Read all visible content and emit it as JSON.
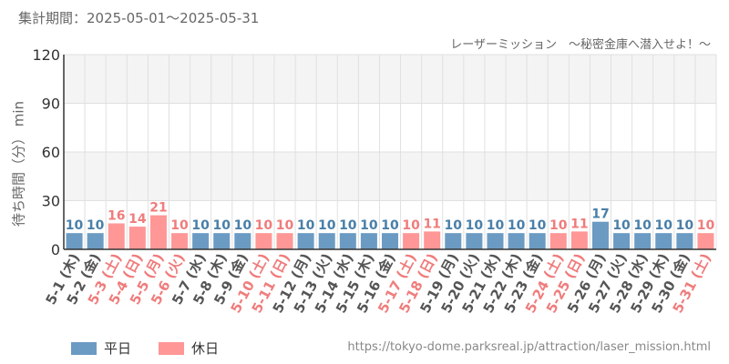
{
  "header": {
    "period": "集計期間：2025-05-01～2025-05-31",
    "attraction": "レーザーミッション　～秘密金庫へ潜入せよ！～"
  },
  "legend": {
    "weekday": "平日",
    "holiday": "休日"
  },
  "source_url": "https://tokyo-dome.parksreal.jp/attraction/laser_mission.html",
  "colors": {
    "weekday": "#6b9bc3",
    "holiday": "#ff9797",
    "weekday_label": "#4a7fa8",
    "holiday_label": "#f07c7c",
    "band": "#f4f4f4",
    "grid": "#e0e0e0",
    "axis": "#333333"
  },
  "chart_data": {
    "type": "bar",
    "title": "レーザーミッション　～秘密金庫へ潜入せよ！～",
    "ylabel": "待ち時間（分）",
    "yunit": "min",
    "ylim": [
      0,
      120
    ],
    "yticks": [
      0,
      30,
      60,
      90,
      120
    ],
    "categories": [
      "5-1 (木)",
      "5-2 (金)",
      "5-3 (土)",
      "5-4 (日)",
      "5-5 (月)",
      "5-6 (火)",
      "5-7 (水)",
      "5-8 (木)",
      "5-9 (金)",
      "5-10 (土)",
      "5-11 (日)",
      "5-12 (月)",
      "5-13 (火)",
      "5-14 (水)",
      "5-15 (木)",
      "5-16 (金)",
      "5-17 (土)",
      "5-18 (日)",
      "5-19 (月)",
      "5-20 (火)",
      "5-21 (水)",
      "5-22 (木)",
      "5-23 (金)",
      "5-24 (土)",
      "5-25 (日)",
      "5-26 (月)",
      "5-27 (火)",
      "5-28 (水)",
      "5-29 (木)",
      "5-30 (金)",
      "5-31 (土)"
    ],
    "values": [
      10,
      10,
      16,
      14,
      21,
      10,
      10,
      10,
      10,
      10,
      10,
      10,
      10,
      10,
      10,
      10,
      10,
      11,
      10,
      10,
      10,
      10,
      10,
      10,
      11,
      17,
      10,
      10,
      10,
      10,
      10
    ],
    "day_type": [
      "weekday",
      "weekday",
      "holiday",
      "holiday",
      "holiday",
      "holiday",
      "weekday",
      "weekday",
      "weekday",
      "holiday",
      "holiday",
      "weekday",
      "weekday",
      "weekday",
      "weekday",
      "weekday",
      "holiday",
      "holiday",
      "weekday",
      "weekday",
      "weekday",
      "weekday",
      "weekday",
      "holiday",
      "holiday",
      "weekday",
      "weekday",
      "weekday",
      "weekday",
      "weekday",
      "holiday"
    ]
  }
}
